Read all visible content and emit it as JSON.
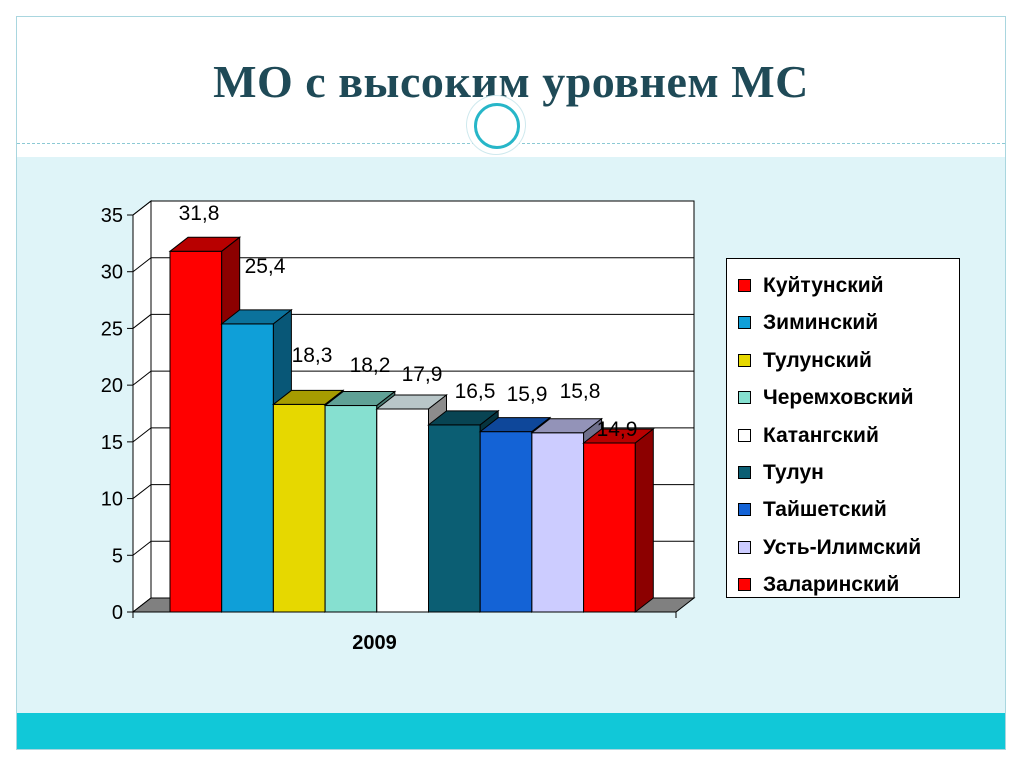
{
  "slide": {
    "title": "МО с высоким уровнем МС"
  },
  "chart_data": {
    "type": "bar",
    "categories": [
      "2009"
    ],
    "ylim": [
      0,
      35
    ],
    "yticks": [
      0,
      5,
      10,
      15,
      20,
      25,
      30,
      35
    ],
    "grid": true,
    "legend_position": "right",
    "series": [
      {
        "name": "Куйтунский",
        "values": [
          31.8
        ],
        "label": "31,8",
        "color": "#ff0000"
      },
      {
        "name": "Зиминский",
        "values": [
          25.4
        ],
        "label": "25,4",
        "color": "#0f9fd8"
      },
      {
        "name": "Тулунский",
        "values": [
          18.3
        ],
        "label": "18,3",
        "color": "#e6d800"
      },
      {
        "name": "Черемховский",
        "values": [
          18.2
        ],
        "label": "18,2",
        "color": "#86e0d0"
      },
      {
        "name": "Катангский",
        "values": [
          17.9
        ],
        "label": "17,9",
        "color": "#ffffff"
      },
      {
        "name": "Тулун",
        "values": [
          16.5
        ],
        "label": "16,5",
        "color": "#0b5e73"
      },
      {
        "name": "Тайшетский",
        "values": [
          15.9
        ],
        "label": "15,9",
        "color": "#1463d6"
      },
      {
        "name": "Усть-Илимский",
        "values": [
          15.8
        ],
        "label": "15,8",
        "color": "#ccccff"
      },
      {
        "name": "Заларинский",
        "values": [
          14.9
        ],
        "label": "14,9",
        "color": "#ff0000"
      }
    ]
  }
}
